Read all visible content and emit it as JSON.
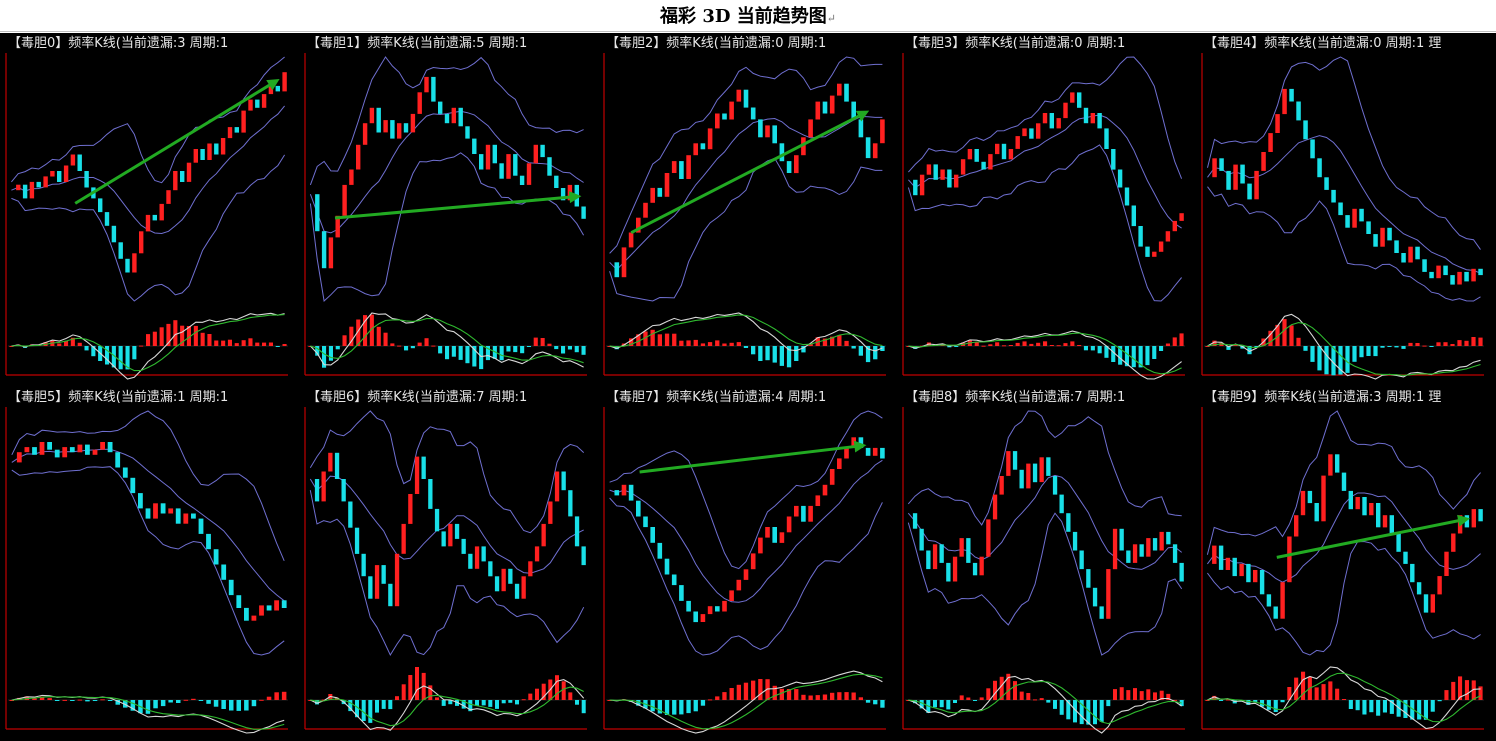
{
  "title": "福彩 3D 当前趋势图",
  "title_mark": "↵",
  "colors": {
    "background": "#000000",
    "candle_up": "#ff2020",
    "candle_down": "#19e0e8",
    "band": "#6f6fd0",
    "axis": "#c00000",
    "macd_dif": "#d8d8d8",
    "macd_dea": "#2fb82f",
    "arrow": "#22aa22"
  },
  "chart_data": [
    {
      "type": "candlestick",
      "title": "【毒胆0】频率K线(当前遗漏:3 周期:1",
      "closes": [
        55,
        57,
        52,
        58,
        56,
        60,
        62,
        58,
        64,
        68,
        62,
        56,
        52,
        47,
        42,
        36,
        30,
        25,
        32,
        40,
        46,
        44,
        50,
        55,
        62,
        58,
        65,
        70,
        66,
        72,
        68,
        74,
        78,
        76,
        84,
        88,
        85,
        90,
        93,
        91,
        98
      ],
      "arrow": [
        [
          0.24,
          0.4
        ],
        [
          0.97,
          0.91
        ]
      ]
    },
    {
      "type": "candlestick",
      "title": "【毒胆1】频率K线(当前遗漏:5 周期:1",
      "closes": [
        52,
        40,
        28,
        38,
        45,
        55,
        60,
        68,
        75,
        80,
        72,
        76,
        70,
        75,
        72,
        78,
        85,
        90,
        82,
        78,
        75,
        80,
        74,
        70,
        65,
        60,
        68,
        62,
        57,
        65,
        58,
        55,
        62,
        68,
        64,
        58,
        54,
        50,
        55,
        48,
        44
      ],
      "arrow": [
        [
          0.1,
          0.34
        ],
        [
          0.98,
          0.43
        ]
      ]
    },
    {
      "type": "candlestick",
      "title": "【毒胆2】频率K线(当前遗漏:0 周期:1",
      "closes": [
        30,
        25,
        35,
        40,
        45,
        50,
        55,
        52,
        60,
        64,
        58,
        66,
        70,
        68,
        75,
        80,
        78,
        84,
        88,
        82,
        78,
        72,
        76,
        70,
        64,
        60,
        66,
        72,
        78,
        84,
        80,
        86,
        90,
        84,
        78,
        72,
        65,
        70,
        78
      ],
      "arrow": [
        [
          0.09,
          0.28
        ],
        [
          0.94,
          0.78
        ]
      ]
    },
    {
      "type": "candlestick",
      "title": "【毒胆3】频率K线(当前遗漏:0 周期:1",
      "closes": [
        58,
        52,
        60,
        64,
        58,
        62,
        55,
        60,
        66,
        70,
        65,
        62,
        68,
        72,
        66,
        70,
        75,
        78,
        74,
        80,
        84,
        78,
        82,
        88,
        92,
        86,
        80,
        84,
        78,
        70,
        62,
        55,
        48,
        40,
        32,
        28,
        30,
        34,
        38,
        42,
        45
      ],
      "arrow": null
    },
    {
      "type": "candlestick",
      "title": "【毒胆4】频率K线(当前遗漏:0 周期:1 理",
      "closes": [
        62,
        68,
        64,
        58,
        66,
        60,
        55,
        64,
        70,
        76,
        82,
        90,
        86,
        80,
        74,
        68,
        62,
        58,
        54,
        50,
        46,
        52,
        48,
        44,
        40,
        46,
        42,
        38,
        35,
        40,
        36,
        32,
        30,
        34,
        31,
        28,
        32,
        29,
        33,
        31
      ],
      "arrow": null
    },
    {
      "type": "candlestick",
      "title": "【毒胆5】频率K线(当前遗漏:1 周期:1",
      "closes": [
        82,
        86,
        88,
        85,
        90,
        87,
        84,
        88,
        86,
        89,
        85,
        87,
        90,
        86,
        80,
        76,
        70,
        64,
        60,
        66,
        62,
        64,
        58,
        62,
        60,
        54,
        48,
        42,
        36,
        30,
        25,
        20,
        22,
        26,
        24,
        28,
        25
      ],
      "arrow": null
    },
    {
      "type": "candlestick",
      "title": "【毒胆6】频率K线(当前遗漏:7 周期:1",
      "closes": [
        68,
        62,
        70,
        75,
        68,
        62,
        55,
        48,
        42,
        36,
        45,
        40,
        34,
        48,
        56,
        64,
        74,
        68,
        60,
        54,
        50,
        56,
        52,
        48,
        44,
        50,
        46,
        42,
        38,
        44,
        40,
        36,
        42,
        46,
        50,
        56,
        62,
        70,
        65,
        58,
        50,
        45
      ],
      "arrow": null
    },
    {
      "type": "candlestick",
      "title": "【毒胆7】频率K线(当前遗漏:4 周期:1",
      "closes": [
        72,
        70,
        74,
        68,
        62,
        58,
        52,
        46,
        40,
        36,
        30,
        26,
        22,
        25,
        28,
        26,
        30,
        34,
        38,
        42,
        48,
        54,
        58,
        52,
        56,
        62,
        66,
        60,
        66,
        70,
        74,
        80,
        84,
        88,
        92,
        88,
        85,
        88,
        84
      ],
      "arrow": [
        [
          0.12,
          0.75
        ],
        [
          0.93,
          0.86
        ]
      ]
    },
    {
      "type": "candlestick",
      "title": "【毒胆8】频率K线(当前遗漏:7 周期:1",
      "closes": [
        60,
        55,
        48,
        42,
        50,
        44,
        38,
        46,
        52,
        44,
        40,
        46,
        58,
        66,
        72,
        80,
        74,
        68,
        76,
        70,
        78,
        72,
        66,
        60,
        54,
        48,
        42,
        36,
        30,
        26,
        42,
        55,
        48,
        44,
        50,
        46,
        52,
        48,
        54,
        50,
        44,
        38
      ],
      "arrow": null
    },
    {
      "type": "candlestick",
      "title": "【毒胆9】频率K线(当前遗漏:3 周期:1 理",
      "closes": [
        46,
        52,
        44,
        48,
        42,
        46,
        40,
        44,
        36,
        32,
        28,
        40,
        55,
        62,
        70,
        66,
        60,
        75,
        82,
        76,
        70,
        64,
        68,
        62,
        66,
        58,
        62,
        56,
        50,
        46,
        40,
        36,
        30,
        36,
        42,
        50,
        56,
        62,
        58,
        64,
        60
      ],
      "arrow": [
        [
          0.26,
          0.4
        ],
        [
          0.95,
          0.56
        ]
      ]
    }
  ]
}
